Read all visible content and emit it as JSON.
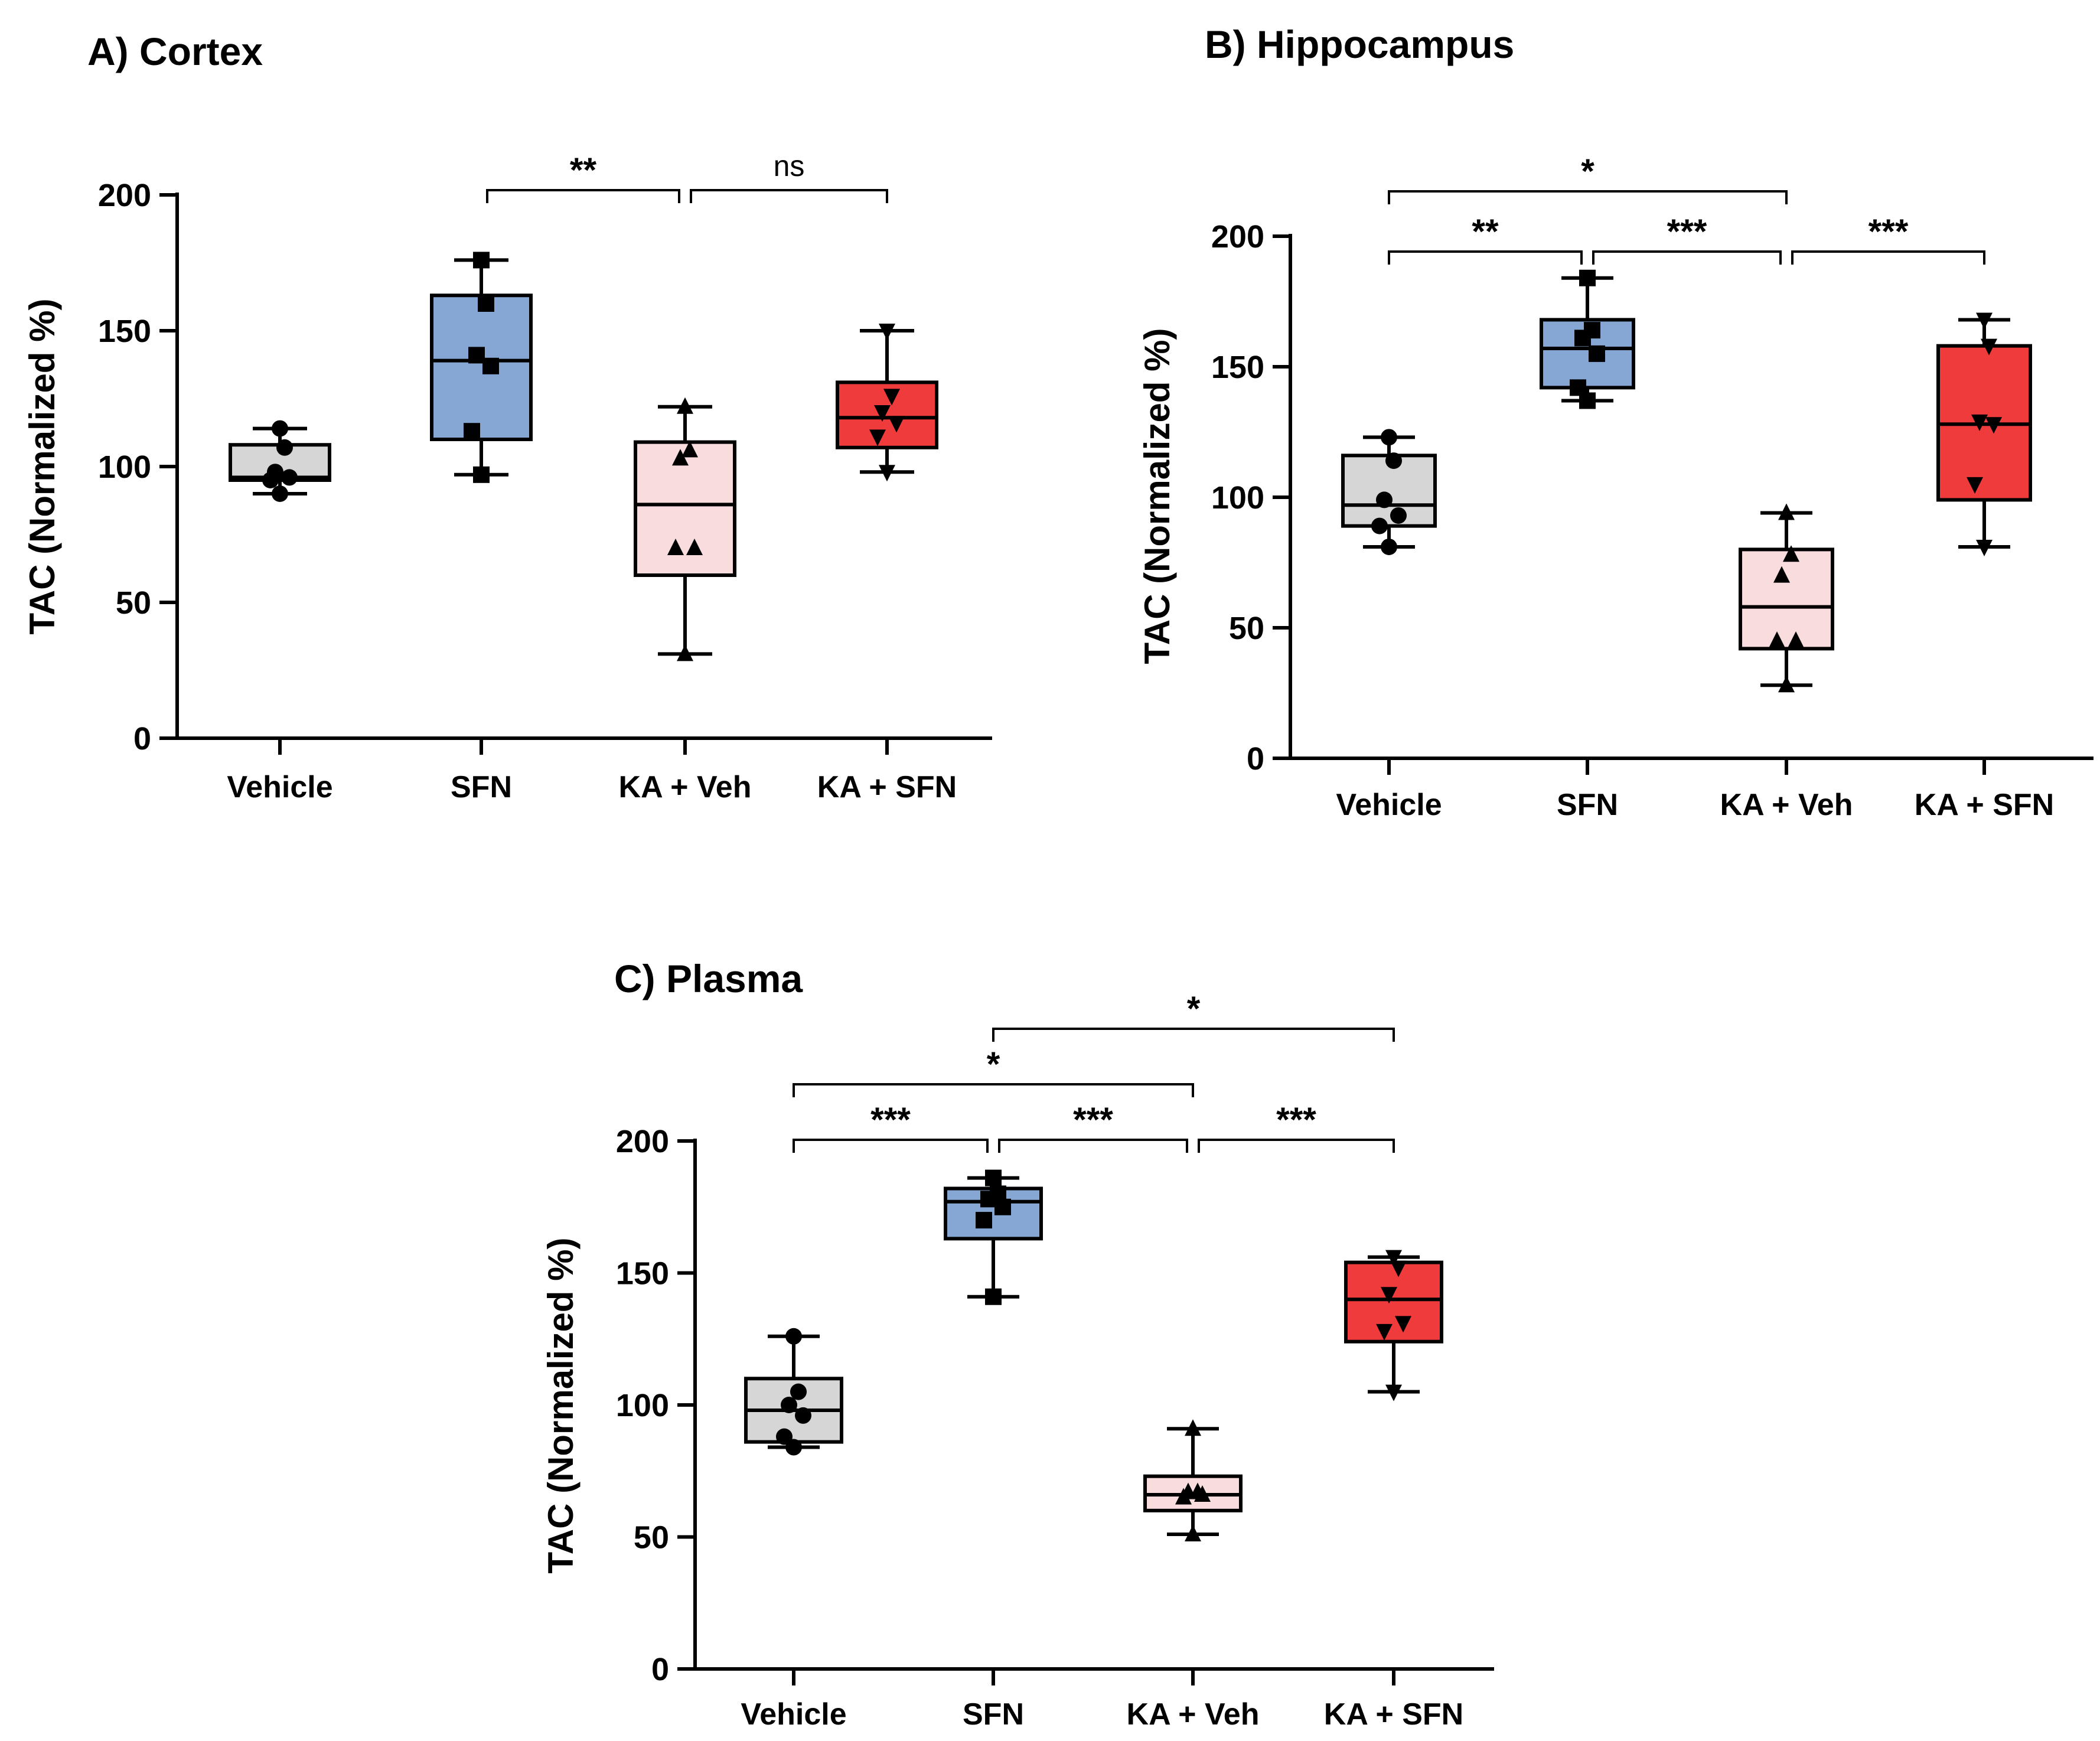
{
  "chart_data": [
    {
      "type": "box",
      "title": "A) Cortex",
      "ylabel": "TAC  (Normalized %)",
      "ylim": [
        0,
        200
      ],
      "yticks": [
        "0",
        "50",
        "100",
        "150",
        "200"
      ],
      "categories": [
        "Vehicle",
        "SFN",
        "KA + Veh",
        "KA + SFN"
      ],
      "colors": [
        "#d6d6d6",
        "#86a7d3",
        "#f9dcde",
        "#ef3b3b"
      ],
      "markers": [
        "circle",
        "square",
        "triangle-up",
        "triangle-down"
      ],
      "boxes": [
        {
          "min": 90,
          "q1": 95,
          "median": 96,
          "q3": 108,
          "max": 114,
          "points": [
            114,
            107,
            98,
            96,
            95,
            90
          ]
        },
        {
          "min": 97,
          "q1": 110,
          "median": 139,
          "q3": 163,
          "max": 176,
          "points": [
            176,
            160,
            141,
            137,
            113,
            97
          ]
        },
        {
          "min": 31,
          "q1": 60,
          "median": 86,
          "q3": 109,
          "max": 122,
          "points": [
            122,
            106,
            103,
            70,
            70,
            31
          ]
        },
        {
          "min": 98,
          "q1": 107,
          "median": 118,
          "q3": 131,
          "max": 150,
          "points": [
            150,
            126,
            120,
            116,
            111,
            98
          ]
        }
      ],
      "significance": [
        {
          "from": 1,
          "to": 2,
          "label": "**"
        },
        {
          "from": 2,
          "to": 3,
          "label": "ns"
        }
      ]
    },
    {
      "type": "box",
      "title": "B)  Hippocampus",
      "ylabel": "TAC  (Normalized %)",
      "ylim": [
        0,
        200
      ],
      "yticks": [
        "0",
        "50",
        "100",
        "150",
        "200"
      ],
      "categories": [
        "Vehicle",
        "SFN",
        "KA + Veh",
        "KA + SFN"
      ],
      "colors": [
        "#d6d6d6",
        "#86a7d3",
        "#f9dcde",
        "#ef3b3b"
      ],
      "markers": [
        "circle",
        "square",
        "triangle-up",
        "triangle-down"
      ],
      "boxes": [
        {
          "min": 81,
          "q1": 89,
          "median": 97,
          "q3": 116,
          "max": 123,
          "points": [
            123,
            114,
            99,
            93,
            89,
            81
          ]
        },
        {
          "min": 137,
          "q1": 142,
          "median": 157,
          "q3": 168,
          "max": 184,
          "points": [
            184,
            164,
            161,
            155,
            142,
            137
          ]
        },
        {
          "min": 28,
          "q1": 42,
          "median": 58,
          "q3": 80,
          "max": 94,
          "points": [
            94,
            78,
            70,
            45,
            45,
            28
          ]
        },
        {
          "min": 81,
          "q1": 99,
          "median": 128,
          "q3": 158,
          "max": 168,
          "points": [
            168,
            158,
            129,
            128,
            105,
            81
          ]
        }
      ],
      "significance": [
        {
          "from": 0,
          "to": 2,
          "label": "*",
          "level": 1
        },
        {
          "from": 0,
          "to": 1,
          "label": "**",
          "level": 0
        },
        {
          "from": 1,
          "to": 2,
          "label": "***",
          "level": 0
        },
        {
          "from": 2,
          "to": 3,
          "label": "***",
          "level": 0
        }
      ]
    },
    {
      "type": "box",
      "title": "C) Plasma",
      "ylabel": "TAC  (Normalized %)",
      "ylim": [
        0,
        200
      ],
      "yticks": [
        "0",
        "50",
        "100",
        "150",
        "200"
      ],
      "categories": [
        "Vehicle",
        "SFN",
        "KA + Veh",
        "KA + SFN"
      ],
      "colors": [
        "#d6d6d6",
        "#86a7d3",
        "#f9dcde",
        "#ef3b3b"
      ],
      "markers": [
        "circle",
        "square",
        "triangle-up",
        "triangle-down"
      ],
      "boxes": [
        {
          "min": 84,
          "q1": 86,
          "median": 98,
          "q3": 110,
          "max": 126,
          "points": [
            126,
            105,
            100,
            96,
            88,
            84
          ]
        },
        {
          "min": 141,
          "q1": 163,
          "median": 177,
          "q3": 182,
          "max": 186,
          "points": [
            186,
            180,
            178,
            175,
            170,
            141
          ]
        },
        {
          "min": 51,
          "q1": 60,
          "median": 66,
          "q3": 73,
          "max": 91,
          "points": [
            91,
            67,
            67,
            66,
            65,
            51
          ]
        },
        {
          "min": 105,
          "q1": 124,
          "median": 140,
          "q3": 154,
          "max": 156,
          "points": [
            156,
            152,
            142,
            131,
            128,
            105
          ]
        }
      ],
      "significance": [
        {
          "from": 1,
          "to": 3,
          "label": "*",
          "level": 2
        },
        {
          "from": 0,
          "to": 2,
          "label": "*",
          "level": 1
        },
        {
          "from": 0,
          "to": 1,
          "label": "***",
          "level": 0
        },
        {
          "from": 1,
          "to": 2,
          "label": "***",
          "level": 0
        },
        {
          "from": 2,
          "to": 3,
          "label": "***",
          "level": 0
        }
      ]
    }
  ]
}
